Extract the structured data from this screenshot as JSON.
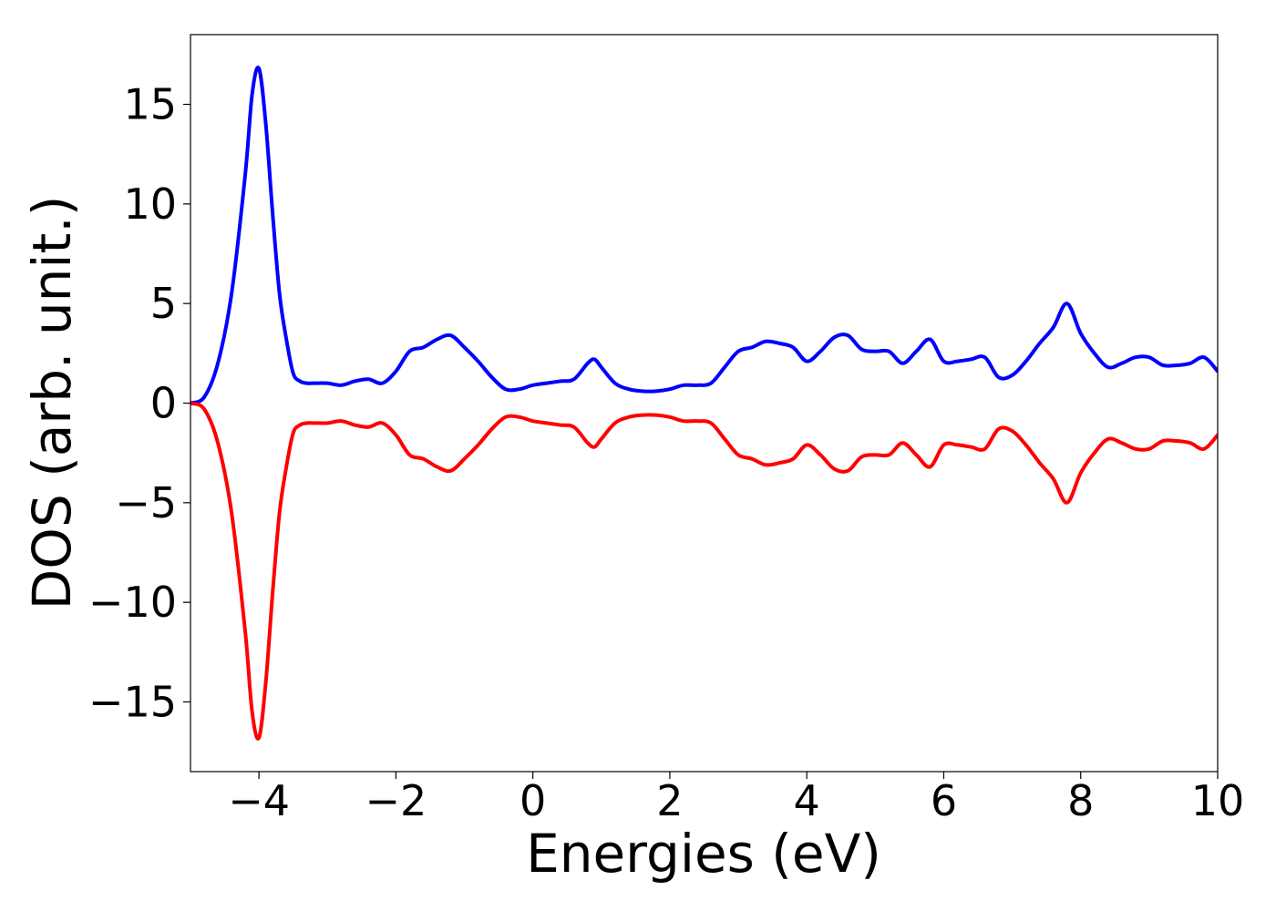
{
  "chart_data": {
    "type": "line",
    "title": "",
    "xlabel": "Energies (eV)",
    "ylabel": "DOS (arb. unit.)",
    "xlim": [
      -5,
      10
    ],
    "ylim": [
      -18.5,
      18.5
    ],
    "xticks": [
      -4,
      -2,
      0,
      2,
      4,
      6,
      8,
      10
    ],
    "xtick_labels": [
      "−4",
      "−2",
      "0",
      "2",
      "4",
      "6",
      "8",
      "10"
    ],
    "yticks": [
      -15,
      -10,
      -5,
      0,
      5,
      10,
      15
    ],
    "ytick_labels": [
      "−15",
      "−10",
      "−5",
      "0",
      "5",
      "10",
      "15"
    ],
    "grid": false,
    "legend": false,
    "series": [
      {
        "color": "#0000ff",
        "x": [
          -5.0,
          -4.8,
          -4.6,
          -4.4,
          -4.2,
          -4.1,
          -4.0,
          -3.9,
          -3.8,
          -3.7,
          -3.6,
          -3.5,
          -3.4,
          -3.3,
          -3.2,
          -3.0,
          -2.8,
          -2.6,
          -2.4,
          -2.2,
          -2.0,
          -1.8,
          -1.6,
          -1.4,
          -1.2,
          -1.0,
          -0.8,
          -0.6,
          -0.4,
          -0.2,
          0.0,
          0.2,
          0.4,
          0.6,
          0.8,
          0.9,
          1.0,
          1.2,
          1.4,
          1.6,
          1.8,
          2.0,
          2.2,
          2.4,
          2.6,
          2.8,
          3.0,
          3.2,
          3.4,
          3.6,
          3.8,
          4.0,
          4.2,
          4.4,
          4.6,
          4.8,
          5.0,
          5.2,
          5.4,
          5.6,
          5.8,
          6.0,
          6.2,
          6.4,
          6.6,
          6.8,
          7.0,
          7.2,
          7.4,
          7.6,
          7.8,
          8.0,
          8.2,
          8.4,
          8.6,
          8.8,
          9.0,
          9.2,
          9.4,
          9.6,
          9.8,
          10.0
        ],
        "values": [
          0.0,
          0.3,
          2.0,
          5.5,
          11.5,
          15.5,
          16.8,
          14.0,
          9.5,
          5.5,
          3.2,
          1.5,
          1.1,
          1.0,
          1.0,
          1.0,
          0.9,
          1.1,
          1.2,
          1.0,
          1.6,
          2.6,
          2.8,
          3.2,
          3.4,
          2.8,
          2.1,
          1.3,
          0.7,
          0.7,
          0.9,
          1.0,
          1.1,
          1.2,
          2.0,
          2.2,
          1.8,
          1.0,
          0.7,
          0.6,
          0.6,
          0.7,
          0.9,
          0.9,
          1.0,
          1.8,
          2.6,
          2.8,
          3.1,
          3.0,
          2.8,
          2.1,
          2.6,
          3.3,
          3.4,
          2.7,
          2.6,
          2.6,
          2.0,
          2.6,
          3.2,
          2.1,
          2.1,
          2.2,
          2.3,
          1.3,
          1.4,
          2.1,
          3.0,
          3.8,
          5.0,
          3.5,
          2.5,
          1.8,
          2.0,
          2.3,
          2.3,
          1.9,
          1.9,
          2.0,
          2.3,
          1.6
        ]
      },
      {
        "color": "#ff0000",
        "x": [
          -5.0,
          -4.8,
          -4.6,
          -4.4,
          -4.2,
          -4.1,
          -4.0,
          -3.9,
          -3.8,
          -3.7,
          -3.6,
          -3.5,
          -3.4,
          -3.3,
          -3.2,
          -3.0,
          -2.8,
          -2.6,
          -2.4,
          -2.2,
          -2.0,
          -1.8,
          -1.6,
          -1.4,
          -1.2,
          -1.0,
          -0.8,
          -0.6,
          -0.4,
          -0.2,
          0.0,
          0.2,
          0.4,
          0.6,
          0.8,
          0.9,
          1.0,
          1.2,
          1.4,
          1.6,
          1.8,
          2.0,
          2.2,
          2.4,
          2.6,
          2.8,
          3.0,
          3.2,
          3.4,
          3.6,
          3.8,
          4.0,
          4.2,
          4.4,
          4.6,
          4.8,
          5.0,
          5.2,
          5.4,
          5.6,
          5.8,
          6.0,
          6.2,
          6.4,
          6.6,
          6.8,
          7.0,
          7.2,
          7.4,
          7.6,
          7.8,
          8.0,
          8.2,
          8.4,
          8.6,
          8.8,
          9.0,
          9.2,
          9.4,
          9.6,
          9.8,
          10.0
        ],
        "values": [
          0.0,
          -0.3,
          -2.0,
          -5.5,
          -11.5,
          -15.5,
          -16.8,
          -14.0,
          -9.5,
          -5.5,
          -3.2,
          -1.5,
          -1.1,
          -1.0,
          -1.0,
          -1.0,
          -0.9,
          -1.1,
          -1.2,
          -1.0,
          -1.6,
          -2.6,
          -2.8,
          -3.2,
          -3.4,
          -2.8,
          -2.1,
          -1.3,
          -0.7,
          -0.7,
          -0.9,
          -1.0,
          -1.1,
          -1.2,
          -2.0,
          -2.2,
          -1.8,
          -1.0,
          -0.7,
          -0.6,
          -0.6,
          -0.7,
          -0.9,
          -0.9,
          -1.0,
          -1.8,
          -2.6,
          -2.8,
          -3.1,
          -3.0,
          -2.8,
          -2.1,
          -2.6,
          -3.3,
          -3.4,
          -2.7,
          -2.6,
          -2.6,
          -2.0,
          -2.6,
          -3.2,
          -2.1,
          -2.1,
          -2.2,
          -2.3,
          -1.3,
          -1.4,
          -2.1,
          -3.0,
          -3.8,
          -5.0,
          -3.5,
          -2.5,
          -1.8,
          -2.0,
          -2.3,
          -2.3,
          -1.9,
          -1.9,
          -2.0,
          -2.3,
          -1.6
        ]
      }
    ]
  }
}
